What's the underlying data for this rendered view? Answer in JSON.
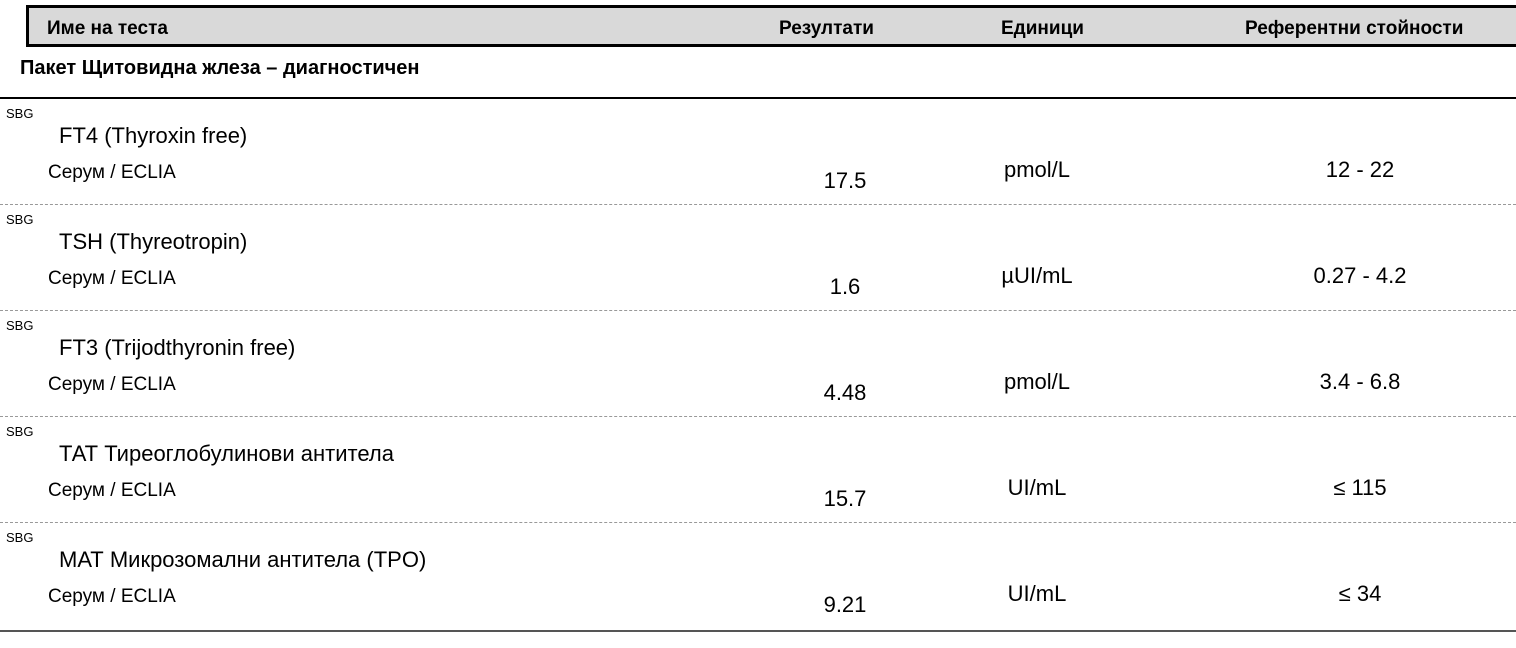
{
  "header": {
    "name": "Име на теста",
    "result": "Резултати",
    "unit": "Единици",
    "reference": "Референтни стойности"
  },
  "section": {
    "title": "Пакет Щитовидна жлеза – диагностичен"
  },
  "tests": [
    {
      "lab": "SBG",
      "name": "FT4 (Thyroxin free)",
      "method": "Серум / ECLIA",
      "result": "17.5",
      "unit": "pmol/L",
      "reference": "12 - 22"
    },
    {
      "lab": "SBG",
      "name": "TSH (Thyreotropin)",
      "method": "Серум / ECLIA",
      "result": "1.6",
      "unit": "µUI/mL",
      "reference": "0.27 - 4.2"
    },
    {
      "lab": "SBG",
      "name": "FT3 (Trijodthyronin free)",
      "method": "Серум / ECLIA",
      "result": "4.48",
      "unit": "pmol/L",
      "reference": "3.4 - 6.8"
    },
    {
      "lab": "SBG",
      "name": "ТАТ Тиреоглобулинови антитела",
      "method": "Серум / ECLIA",
      "result": "15.7",
      "unit": "UI/mL",
      "reference": "≤ 115"
    },
    {
      "lab": "SBG",
      "name": "МАТ Микрозомални антитела (TPO)",
      "method": "Серум / ECLIA",
      "result": "9.21",
      "unit": "UI/mL",
      "reference": "≤ 34"
    }
  ]
}
